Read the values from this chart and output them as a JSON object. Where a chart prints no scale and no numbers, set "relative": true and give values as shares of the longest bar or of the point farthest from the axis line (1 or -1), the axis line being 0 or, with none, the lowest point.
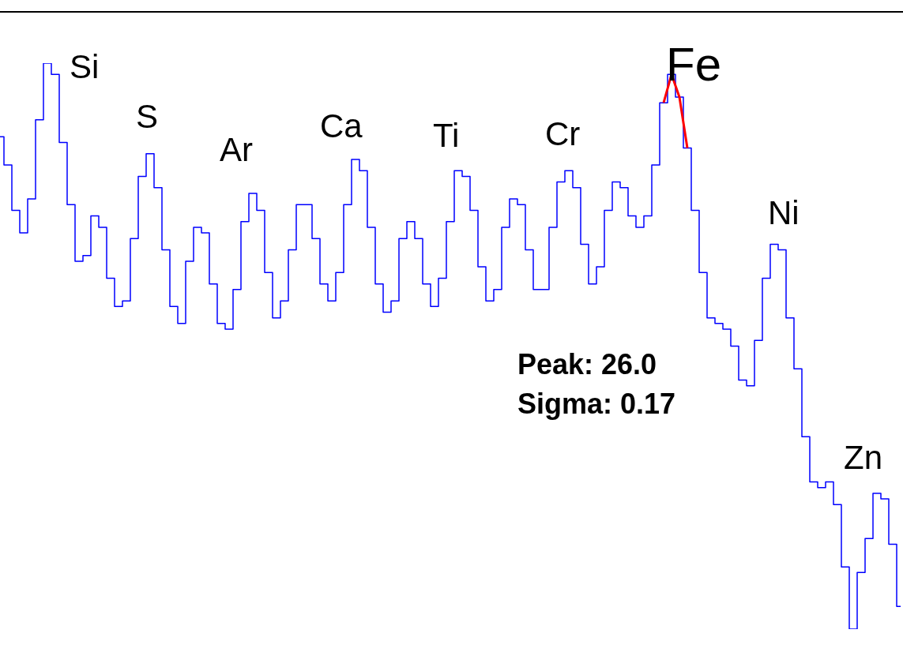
{
  "chart_data": {
    "type": "step",
    "relative": true,
    "categories": [
      null,
      null,
      null,
      null,
      null,
      null,
      null,
      null,
      null,
      null,
      null,
      null,
      null,
      null,
      null,
      null,
      null,
      null,
      null,
      null,
      null,
      null,
      null,
      null,
      null,
      null,
      null,
      null,
      null,
      null,
      null,
      null,
      null,
      null,
      null,
      null,
      null,
      null,
      null,
      null,
      null,
      null,
      null,
      null,
      null,
      null,
      null,
      null,
      null,
      null,
      null,
      null,
      null,
      null,
      null,
      null,
      null,
      null,
      null,
      null,
      null,
      null,
      null,
      null,
      null,
      null,
      null,
      null,
      null,
      null,
      null,
      null,
      null,
      null,
      null,
      null,
      null,
      null,
      null,
      null,
      null,
      null,
      null,
      null,
      null,
      null,
      null,
      null,
      null,
      null,
      null,
      null,
      null,
      null,
      null,
      null,
      null,
      null,
      null,
      null,
      null,
      null,
      null,
      null,
      null,
      null,
      null,
      null,
      null,
      null,
      null,
      null,
      null,
      null,
      null
    ],
    "series": [
      {
        "type": "step",
        "color": "#0000ff",
        "values": [
          0.87,
          0.82,
          0.74,
          0.7,
          0.76,
          0.9,
          1.0,
          0.98,
          0.86,
          0.75,
          0.65,
          0.66,
          0.73,
          0.71,
          0.62,
          0.57,
          0.58,
          0.69,
          0.8,
          0.84,
          0.78,
          0.67,
          0.57,
          0.54,
          0.65,
          0.71,
          0.7,
          0.61,
          0.54,
          0.53,
          0.6,
          0.72,
          0.77,
          0.74,
          0.63,
          0.55,
          0.58,
          0.67,
          0.75,
          0.75,
          0.69,
          0.61,
          0.58,
          0.63,
          0.75,
          0.83,
          0.81,
          0.71,
          0.61,
          0.56,
          0.58,
          0.69,
          0.72,
          0.69,
          0.61,
          0.57,
          0.62,
          0.72,
          0.81,
          0.8,
          0.74,
          0.64,
          0.58,
          0.6,
          0.71,
          0.76,
          0.75,
          0.67,
          0.6,
          0.6,
          0.71,
          0.79,
          0.81,
          0.78,
          0.68,
          0.61,
          0.64,
          0.74,
          0.79,
          0.78,
          0.73,
          0.71,
          0.73,
          0.82,
          0.93,
          0.98,
          0.94,
          0.85,
          0.74,
          0.63,
          0.55,
          0.54,
          0.53,
          0.5,
          0.44,
          0.43,
          0.51,
          0.62,
          0.68,
          0.67,
          0.55,
          0.46,
          0.34,
          0.26,
          0.25,
          0.26,
          0.22,
          0.11,
          0,
          0.1,
          0.16,
          0.24,
          0.23,
          0.15,
          0.04
        ]
      },
      {
        "type": "line",
        "color": "#ff0000",
        "values": [
          null,
          null,
          null,
          null,
          null,
          null,
          null,
          null,
          null,
          null,
          null,
          null,
          null,
          null,
          null,
          null,
          null,
          null,
          null,
          null,
          null,
          null,
          null,
          null,
          null,
          null,
          null,
          null,
          null,
          null,
          null,
          null,
          null,
          null,
          null,
          null,
          null,
          null,
          null,
          null,
          null,
          null,
          null,
          null,
          null,
          null,
          null,
          null,
          null,
          null,
          null,
          null,
          null,
          null,
          null,
          null,
          null,
          null,
          null,
          null,
          null,
          null,
          null,
          null,
          null,
          null,
          null,
          null,
          null,
          null,
          null,
          null,
          null,
          null,
          null,
          null,
          null,
          null,
          null,
          null,
          null,
          null,
          null,
          null,
          0.93,
          0.98,
          0.94,
          0.85,
          null,
          null,
          null,
          null,
          null,
          null,
          null,
          null,
          null,
          null,
          null,
          null,
          null,
          null,
          null,
          null,
          null,
          null,
          null,
          null,
          null,
          null,
          null,
          null,
          null,
          null,
          null
        ]
      }
    ],
    "annotations": [
      "Si",
      "S",
      "Ar",
      "Ca",
      "Ti",
      "Cr",
      "Fe",
      "Ni",
      "Zn",
      "Peak: 26.0",
      "Sigma: 0.17"
    ]
  }
}
